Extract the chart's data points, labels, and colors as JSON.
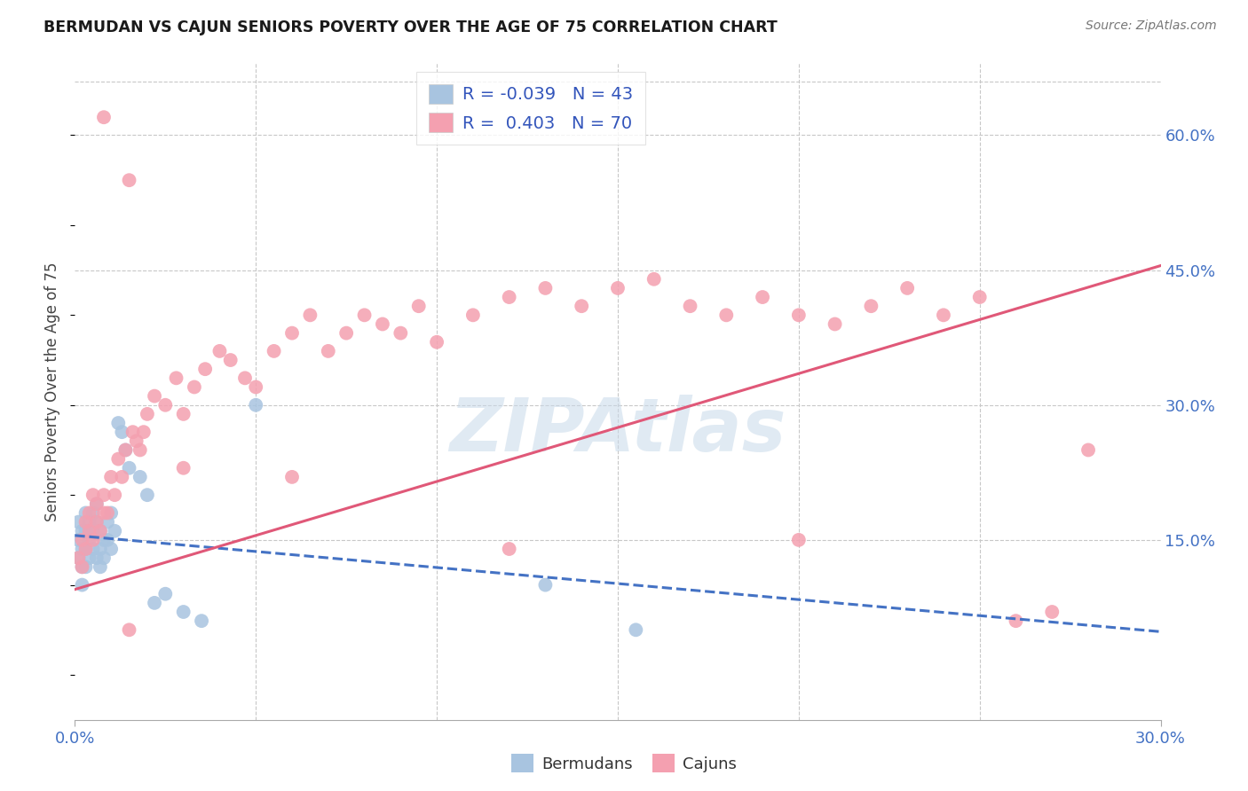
{
  "title": "BERMUDAN VS CAJUN SENIORS POVERTY OVER THE AGE OF 75 CORRELATION CHART",
  "source": "Source: ZipAtlas.com",
  "ylabel": "Seniors Poverty Over the Age of 75",
  "x_min": 0.0,
  "x_max": 0.3,
  "y_min": -0.05,
  "y_max": 0.68,
  "y_ticks_right": [
    0.15,
    0.3,
    0.45,
    0.6
  ],
  "y_tick_labels_right": [
    "15.0%",
    "30.0%",
    "45.0%",
    "60.0%"
  ],
  "bermudans_R": -0.039,
  "bermudans_N": 43,
  "cajuns_R": 0.403,
  "cajuns_N": 70,
  "bermudans_color": "#a8c4e0",
  "cajuns_color": "#f4a0b0",
  "bermudans_line_color": "#4472c4",
  "cajuns_line_color": "#e05878",
  "legend_color": "#3355bb",
  "watermark": "ZIPAtlas",
  "background_color": "#ffffff",
  "grid_color": "#c8c8c8",
  "bermudans_x": [
    0.001,
    0.001,
    0.001,
    0.002,
    0.002,
    0.002,
    0.002,
    0.003,
    0.003,
    0.003,
    0.003,
    0.004,
    0.004,
    0.004,
    0.005,
    0.005,
    0.005,
    0.006,
    0.006,
    0.006,
    0.007,
    0.007,
    0.007,
    0.008,
    0.008,
    0.009,
    0.009,
    0.01,
    0.01,
    0.011,
    0.012,
    0.013,
    0.014,
    0.015,
    0.018,
    0.02,
    0.022,
    0.025,
    0.03,
    0.035,
    0.05,
    0.13,
    0.155
  ],
  "bermudans_y": [
    0.17,
    0.15,
    0.13,
    0.16,
    0.14,
    0.12,
    0.1,
    0.18,
    0.16,
    0.14,
    0.12,
    0.17,
    0.15,
    0.13,
    0.18,
    0.16,
    0.14,
    0.19,
    0.17,
    0.13,
    0.16,
    0.14,
    0.12,
    0.15,
    0.13,
    0.17,
    0.15,
    0.18,
    0.14,
    0.16,
    0.28,
    0.27,
    0.25,
    0.23,
    0.22,
    0.2,
    0.08,
    0.09,
    0.07,
    0.06,
    0.3,
    0.1,
    0.05
  ],
  "cajuns_x": [
    0.001,
    0.002,
    0.002,
    0.003,
    0.003,
    0.004,
    0.004,
    0.005,
    0.005,
    0.006,
    0.006,
    0.007,
    0.008,
    0.008,
    0.009,
    0.01,
    0.011,
    0.012,
    0.013,
    0.014,
    0.015,
    0.016,
    0.017,
    0.018,
    0.019,
    0.02,
    0.022,
    0.025,
    0.028,
    0.03,
    0.033,
    0.036,
    0.04,
    0.043,
    0.047,
    0.05,
    0.055,
    0.06,
    0.065,
    0.07,
    0.075,
    0.08,
    0.085,
    0.09,
    0.095,
    0.1,
    0.11,
    0.12,
    0.13,
    0.14,
    0.15,
    0.16,
    0.17,
    0.18,
    0.19,
    0.2,
    0.21,
    0.22,
    0.23,
    0.24,
    0.25,
    0.26,
    0.27,
    0.28,
    0.03,
    0.06,
    0.12,
    0.2,
    0.008,
    0.015
  ],
  "cajuns_y": [
    0.13,
    0.15,
    0.12,
    0.17,
    0.14,
    0.16,
    0.18,
    0.15,
    0.2,
    0.17,
    0.19,
    0.16,
    0.62,
    0.2,
    0.18,
    0.22,
    0.2,
    0.24,
    0.22,
    0.25,
    0.55,
    0.27,
    0.26,
    0.25,
    0.27,
    0.29,
    0.31,
    0.3,
    0.33,
    0.29,
    0.32,
    0.34,
    0.36,
    0.35,
    0.33,
    0.32,
    0.36,
    0.38,
    0.4,
    0.36,
    0.38,
    0.4,
    0.39,
    0.38,
    0.41,
    0.37,
    0.4,
    0.42,
    0.43,
    0.41,
    0.43,
    0.44,
    0.41,
    0.4,
    0.42,
    0.4,
    0.39,
    0.41,
    0.43,
    0.4,
    0.42,
    0.06,
    0.07,
    0.25,
    0.23,
    0.22,
    0.14,
    0.15,
    0.18,
    0.05
  ],
  "berm_line_x0": 0.0,
  "berm_line_y0": 0.155,
  "berm_line_x1": 0.3,
  "berm_line_y1": 0.048,
  "cajun_line_x0": 0.0,
  "cajun_line_y0": 0.095,
  "cajun_line_x1": 0.3,
  "cajun_line_y1": 0.455
}
